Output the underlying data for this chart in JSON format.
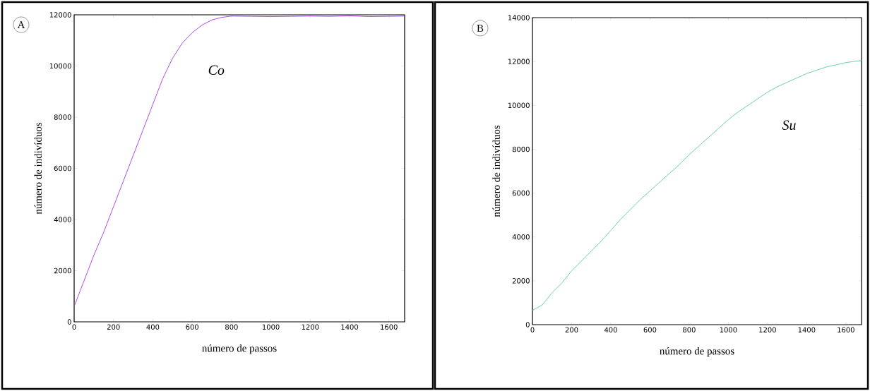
{
  "chart_data": [
    {
      "type": "line",
      "xlabel": "número de passos",
      "ylabel": "número de indivíduos",
      "annotations": [
        "A"
      ],
      "xlim": [
        0,
        1680
      ],
      "ylim": [
        0,
        12000
      ],
      "xticks": [
        0,
        200,
        400,
        600,
        800,
        1000,
        1200,
        1400,
        1600
      ],
      "yticks": [
        0,
        2000,
        4000,
        6000,
        8000,
        10000,
        12000
      ],
      "series": [
        {
          "name": "Co",
          "color": "#b04ce8",
          "x": [
            0,
            50,
            100,
            150,
            200,
            250,
            300,
            350,
            400,
            450,
            500,
            550,
            600,
            650,
            700,
            750,
            800,
            900,
            1000,
            1100,
            1200,
            1300,
            1400,
            1500,
            1600,
            1680
          ],
          "values": [
            600,
            1600,
            2600,
            3500,
            4500,
            5500,
            6500,
            7500,
            8500,
            9500,
            10300,
            10900,
            11300,
            11600,
            11800,
            11900,
            11950,
            11940,
            11930,
            11940,
            11950,
            11940,
            11960,
            11930,
            11940,
            11950
          ]
        }
      ]
    },
    {
      "type": "line",
      "xlabel": "número de passos",
      "ylabel": "número de indivíduos",
      "annotations": [
        "B"
      ],
      "xlim": [
        0,
        1680
      ],
      "ylim": [
        0,
        14000
      ],
      "xticks": [
        0,
        200,
        400,
        600,
        800,
        1000,
        1200,
        1400,
        1600
      ],
      "yticks": [
        0,
        2000,
        4000,
        6000,
        8000,
        10000,
        12000,
        14000
      ],
      "series": [
        {
          "name": "Su",
          "color": "#6fcfb0",
          "x": [
            0,
            50,
            100,
            150,
            200,
            250,
            300,
            350,
            400,
            450,
            500,
            550,
            600,
            650,
            700,
            750,
            800,
            850,
            900,
            950,
            1000,
            1050,
            1100,
            1150,
            1200,
            1250,
            1300,
            1350,
            1400,
            1450,
            1500,
            1550,
            1600,
            1680
          ],
          "values": [
            650,
            900,
            1450,
            1900,
            2450,
            2900,
            3350,
            3800,
            4300,
            4800,
            5250,
            5700,
            6100,
            6500,
            6900,
            7300,
            7750,
            8150,
            8550,
            8950,
            9350,
            9700,
            10000,
            10300,
            10600,
            10850,
            11050,
            11250,
            11450,
            11600,
            11750,
            11850,
            11950,
            12050
          ]
        }
      ]
    }
  ]
}
